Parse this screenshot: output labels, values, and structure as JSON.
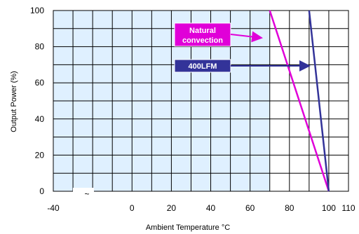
{
  "chart_data": {
    "type": "line",
    "xlabel": "Ambient Temperature °C",
    "ylabel": "Output Power  (%)",
    "xlim": [
      -40,
      110
    ],
    "ylim": [
      0,
      100
    ],
    "x_ticks": [
      "-40",
      "0",
      "20",
      "40",
      "60",
      "80",
      "100",
      "110"
    ],
    "y_ticks": [
      "0",
      "20",
      "40",
      "60",
      "80",
      "100"
    ],
    "grid": true,
    "shaded_region": {
      "from": -40,
      "to": 70
    },
    "series": [
      {
        "name": "Natural convection",
        "color": "#e000d8",
        "points": [
          [
            70,
            100
          ],
          [
            100,
            0
          ]
        ],
        "callout_lines": [
          "Natural",
          "convection"
        ]
      },
      {
        "name": "400LFM",
        "color": "#333399",
        "points": [
          [
            90,
            100
          ],
          [
            100,
            0
          ]
        ],
        "callout_lines": [
          "400LFM"
        ]
      }
    ],
    "axis_break_mark": "~"
  }
}
